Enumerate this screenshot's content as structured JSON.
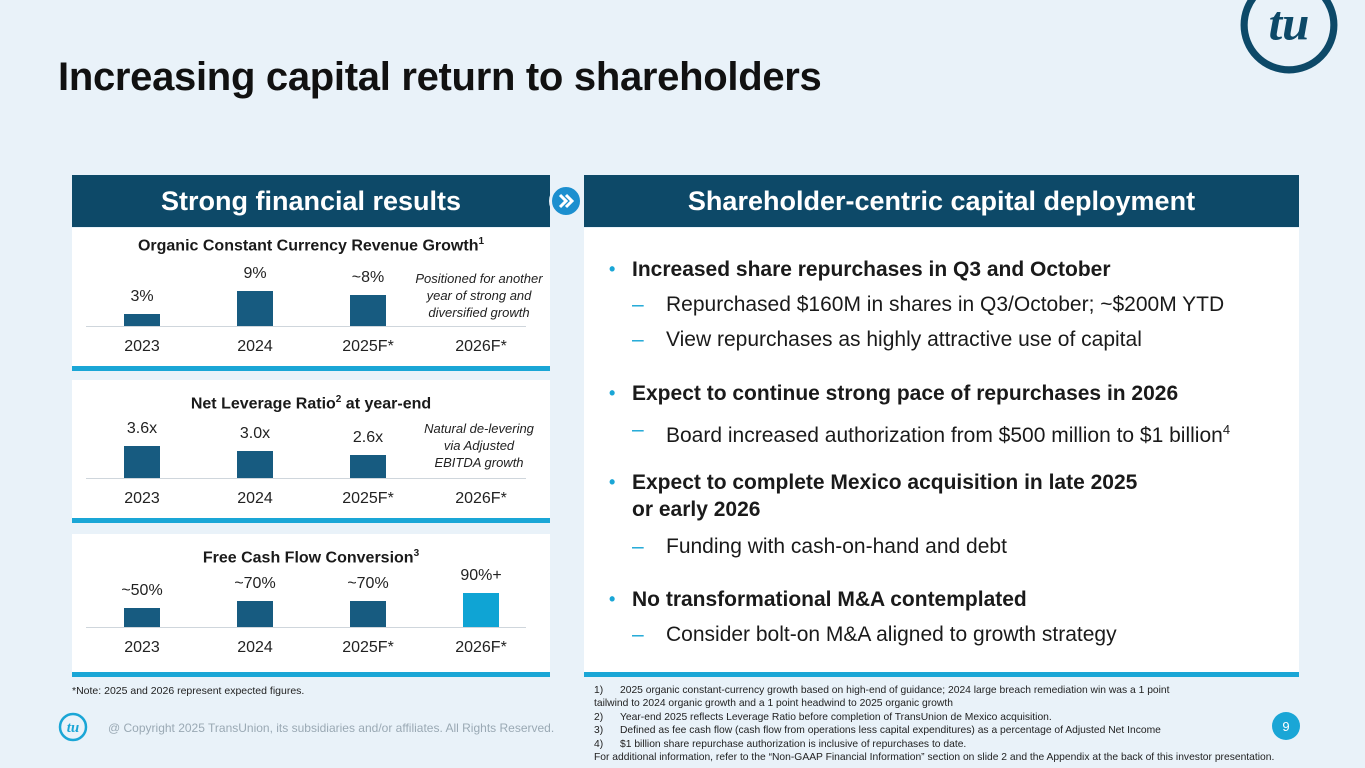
{
  "title": "Increasing capital return to shareholders",
  "left_header": "Strong financial results",
  "right_header": "Shareholder-centric capital deployment",
  "colors": {
    "navy": "#0d4968",
    "bar": "#175b80",
    "accent": "#1aa6d6",
    "background": "#e9f2f9"
  },
  "icons": [
    "transunion-logo",
    "double-chevron-right-icon"
  ],
  "charts": {
    "revenue": {
      "title": "Organic Constant Currency Revenue Growth",
      "sup": "1",
      "note": [
        "Positioned for another",
        "year of strong and",
        "diversified growth"
      ]
    },
    "leverage": {
      "title": "Net Leverage Ratio",
      "sup": "2",
      "title_suffix": " at year-end",
      "note": [
        "Natural de-levering",
        "via Adjusted",
        "EBITDA growth"
      ]
    },
    "fcf": {
      "title": "Free Cash Flow Conversion",
      "sup": "3"
    }
  },
  "chart_data": [
    {
      "type": "bar",
      "title": "Organic Constant Currency Revenue Growth",
      "categories": [
        "2023",
        "2024",
        "2025F*",
        "2026F*"
      ],
      "values": [
        3,
        9,
        8,
        null
      ],
      "labels": [
        "3%",
        "9%",
        "~8%",
        ""
      ],
      "ylim": [
        0,
        9
      ]
    },
    {
      "type": "bar",
      "title": "Net Leverage Ratio at year-end",
      "categories": [
        "2023",
        "2024",
        "2025F*",
        "2026F*"
      ],
      "values": [
        3.6,
        3.0,
        2.6,
        null
      ],
      "labels": [
        "3.6x",
        "3.0x",
        "2.6x",
        ""
      ],
      "ylim": [
        0,
        3.6
      ]
    },
    {
      "type": "bar",
      "title": "Free Cash Flow Conversion",
      "categories": [
        "2023",
        "2024",
        "2025F*",
        "2026F*"
      ],
      "values": [
        50,
        70,
        70,
        90
      ],
      "labels": [
        "~50%",
        "~70%",
        "~70%",
        "90%+"
      ],
      "ylim": [
        0,
        90
      ]
    }
  ],
  "bullets": [
    {
      "text": "Increased share repurchases in Q3 and October",
      "subs": [
        {
          "text": "Repurchased $160M in shares in Q3/October; ~$200M YTD"
        },
        {
          "text": "View repurchases as highly attractive use of capital"
        }
      ]
    },
    {
      "text": "Expect to continue strong pace of repurchases in 2026",
      "subs": [
        {
          "text": "Board increased authorization from $500 million to $1 billion",
          "sup": "4"
        }
      ]
    },
    {
      "text": "Expect to complete Mexico acquisition in late 2025 or early 2026",
      "line1": "Expect to complete Mexico acquisition in late 2025",
      "line2": "or early 2026",
      "subs": [
        {
          "text": "Funding with cash-on-hand and debt"
        }
      ]
    },
    {
      "text": "No transformational M&A contemplated",
      "subs": [
        {
          "text": "Consider bolt-on M&A aligned to growth strategy"
        }
      ]
    }
  ],
  "note_left": "*Note: 2025 and 2026 represent expected figures.",
  "footnotes": {
    "f1_num": "1)",
    "f1_a": "2025 organic constant-currency growth based on high-end of guidance; 2024 large breach remediation win was a 1 point",
    "f1_b": "tailwind to 2024 organic growth and a 1 point headwind to 2025 organic growth",
    "f2_num": "2)",
    "f2": "Year-end 2025 reflects Leverage Ratio before completion of TransUnion de Mexico acquisition.",
    "f3_num": "3)",
    "f3": "Defined as fee cash flow (cash flow from operations less capital expenditures) as a percentage of Adjusted Net Income",
    "f4_num": "4)",
    "f4": "$1 billion share repurchase authorization is inclusive of repurchases to date.",
    "f5": "For additional information, refer to the “Non-GAAP Financial Information” section on slide 2 and the Appendix at the back of this investor presentation."
  },
  "copyright": "@ Copyright 2025 TransUnion, its subsidiaries and/or affiliates.  All Rights Reserved.",
  "page_number": "9"
}
